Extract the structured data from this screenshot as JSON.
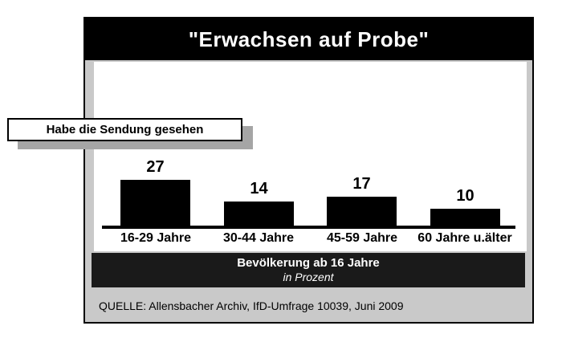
{
  "header": {
    "title": "\"Erwachsen auf Probe\""
  },
  "legend_box": {
    "label": "Habe die Sendung gesehen"
  },
  "chart_data": {
    "type": "bar",
    "title": "\"Erwachsen auf Probe\"",
    "series_label": "Habe die Sendung gesehen",
    "categories": [
      "16-29 Jahre",
      "30-44 Jahre",
      "45-59 Jahre",
      "60 Jahre u.älter"
    ],
    "values": [
      27,
      14,
      17,
      10
    ],
    "xlabel": "Bevölkerung ab 16 Jahre",
    "unit_note": "in Prozent",
    "source": "QUELLE: Allensbacher Archiv, IfD-Umfrage 10039, Juni 2009",
    "grid": false,
    "legend_position": "top-left",
    "bar_labels_shown": true
  },
  "footer": {
    "line1": "Bevölkerung ab 16 Jahre",
    "line2": "in Prozent"
  },
  "source": {
    "text": "QUELLE: Allensbacher Archiv, IfD-Umfrage 10039, Juni 2009"
  },
  "colors": {
    "bar": "#000000",
    "banner_bg": "#000000",
    "banner_text": "#ffffff",
    "panel_bg": "#c9c9c9",
    "footer_bg": "#1a1a1a",
    "label_shadow": "#a5a5a5"
  }
}
